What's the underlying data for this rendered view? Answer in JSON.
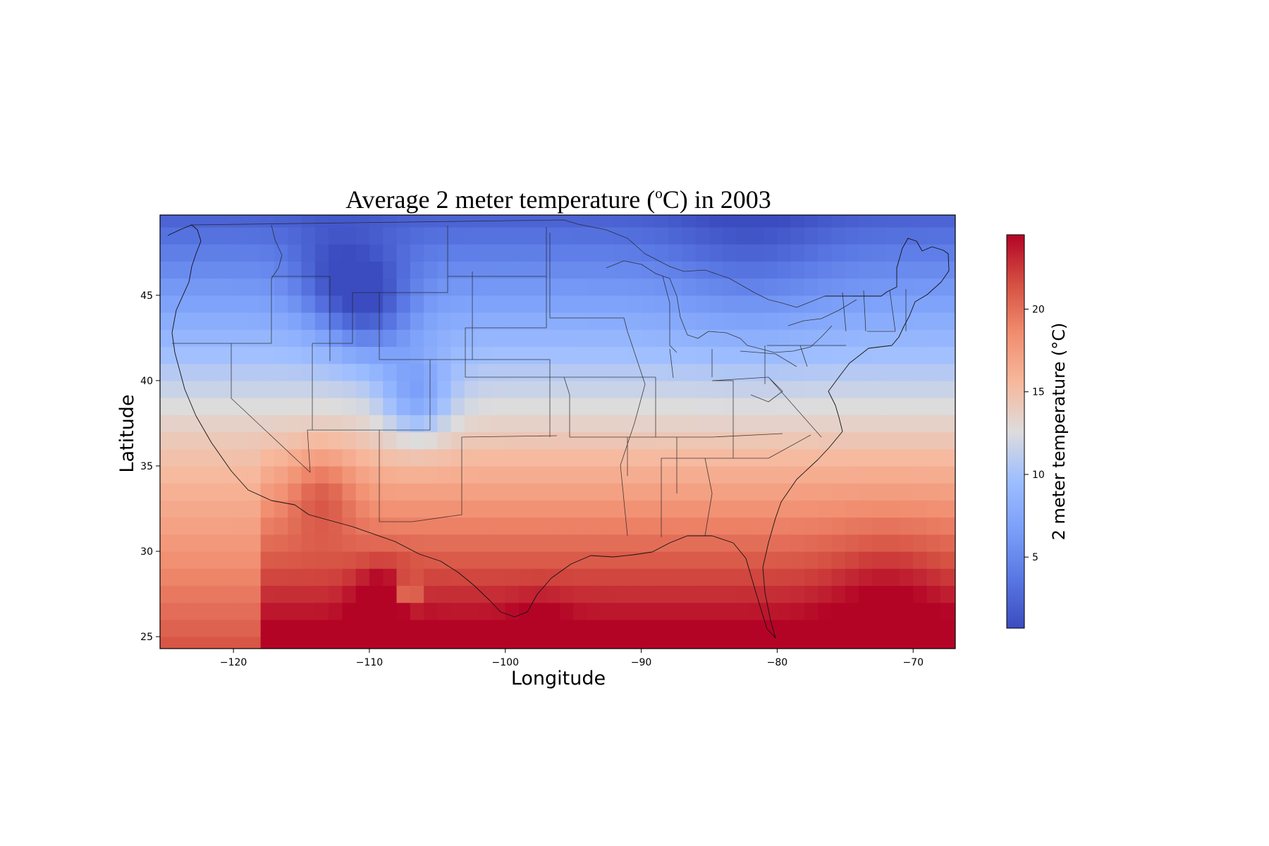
{
  "title": {
    "prefix": "Average 2 meter temperature (",
    "superscript": "o",
    "suffix": "C) in 2003"
  },
  "xlabel": "Longitude",
  "ylabel": "Latitude",
  "colorbar": {
    "label": "2 meter temperature (°C)",
    "range": [
      0.7,
      24.5
    ],
    "ticks": [
      5,
      10,
      15,
      20
    ],
    "colormap": "coolwarm",
    "colors": {
      "cold": "#3b4cc0",
      "mid": "#dddcdc",
      "warm": "#b40426"
    }
  },
  "chart_data": {
    "type": "heatmap",
    "xlim": [
      -125.4,
      -66.9
    ],
    "ylim": [
      24.3,
      49.7
    ],
    "xticks": [
      -120,
      -110,
      -100,
      -90,
      -80,
      -70
    ],
    "yticks": [
      25,
      30,
      35,
      40,
      45
    ],
    "xtick_labels": [
      "−120",
      "−110",
      "−100",
      "−90",
      "−80",
      "−70"
    ],
    "ytick_labels": [
      "25",
      "30",
      "35",
      "40",
      "45"
    ],
    "grid_resolution_deg": 1,
    "overlay": [
      "coastlines",
      "state borders"
    ]
  }
}
